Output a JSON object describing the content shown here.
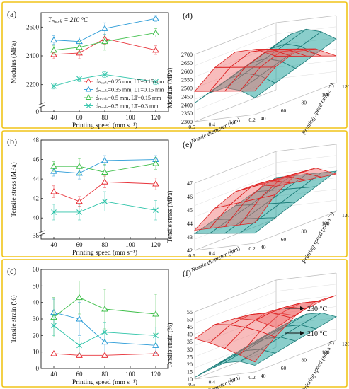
{
  "figure": {
    "panel_border_color": "#f0c419",
    "colors": {
      "red": "#e8343b",
      "blue": "#2a9bd7",
      "green": "#3fbf4a",
      "teal": "#2cc3a8",
      "surf_red": "#f06a6a",
      "surf_teal": "#2aa6a0"
    }
  },
  "chart_data": [
    {
      "panel": "(a)",
      "type": "line",
      "ylabel": "Modulus (MPa)",
      "xlabel": "Printing speed (mm s⁻¹)",
      "annotation": "Tₙₒₓₓₗₑ = 210 °C",
      "x": [
        40,
        60,
        80,
        120
      ],
      "x_ticks": [
        "40",
        "60",
        "80",
        "100",
        "120"
      ],
      "y_ticks": [
        "0",
        "2200",
        "2400",
        "2600"
      ],
      "axis_break": true,
      "legend": [
        "dₙₒₓₓₗₑ=0.25 mm, LT=0.15 mm",
        "dₙₒₓₓₗₑ=0.35 mm, LT=0.15 mm",
        "dₙₒₓₓₗₑ=0.5 mm, LT=0.15 mm",
        "dₙₒₓₓₗₑ=0.5 mm, LT=0.3 mm"
      ],
      "series": [
        {
          "values": [
            2410,
            2420,
            2520,
            2440
          ],
          "errors": [
            30,
            40,
            40,
            30
          ],
          "color": "red",
          "marker": "triangle"
        },
        {
          "values": [
            2510,
            2500,
            2590,
            2660
          ],
          "errors": [
            30,
            30,
            40,
            20
          ],
          "color": "blue",
          "marker": "triangle"
        },
        {
          "values": [
            2440,
            2460,
            2500,
            2560
          ],
          "errors": [
            30,
            40,
            60,
            30
          ],
          "color": "green",
          "marker": "triangle"
        },
        {
          "values": [
            2190,
            2240,
            2270,
            2220
          ],
          "errors": [
            20,
            20,
            20,
            20
          ],
          "color": "teal",
          "marker": "cross"
        }
      ]
    },
    {
      "panel": "(b)",
      "type": "line",
      "ylabel": "Tensile stress (MPa)",
      "xlabel": "Printing speed (mm s⁻¹)",
      "x": [
        40,
        60,
        80,
        120
      ],
      "x_ticks": [
        "40",
        "60",
        "80",
        "100",
        "120"
      ],
      "y_ticks": [
        "38",
        "40",
        "42",
        "44",
        "46",
        "48"
      ],
      "axis_break": true,
      "series": [
        {
          "values": [
            42.7,
            41.7,
            43.7,
            43.5
          ],
          "errors": [
            0.6,
            0.5,
            0.6,
            0.6
          ],
          "color": "red",
          "marker": "triangle"
        },
        {
          "values": [
            44.8,
            44.6,
            45.9,
            46.0
          ],
          "errors": [
            0.5,
            0.6,
            0.5,
            0.4
          ],
          "color": "blue",
          "marker": "triangle"
        },
        {
          "values": [
            45.3,
            45.3,
            44.7,
            45.6
          ],
          "errors": [
            0.5,
            0.8,
            0.8,
            0.6
          ],
          "color": "green",
          "marker": "triangle"
        },
        {
          "values": [
            40.6,
            40.6,
            41.7,
            40.8
          ],
          "errors": [
            0.8,
            0.8,
            1.0,
            1.0
          ],
          "color": "teal",
          "marker": "cross"
        }
      ]
    },
    {
      "panel": "(c)",
      "type": "line",
      "ylabel": "Tensile strain (%)",
      "xlabel": "Printing speed (mm s⁻¹)",
      "x": [
        40,
        60,
        80,
        120
      ],
      "x_ticks": [
        "40",
        "60",
        "80",
        "100",
        "120"
      ],
      "y_ticks": [
        "0",
        "10",
        "20",
        "30",
        "40",
        "50",
        "60"
      ],
      "ylim": [
        0,
        60
      ],
      "series": [
        {
          "values": [
            9,
            8,
            8,
            9
          ],
          "errors": [
            1,
            1,
            1,
            1
          ],
          "color": "red",
          "marker": "triangle"
        },
        {
          "values": [
            34,
            30,
            16,
            14
          ],
          "errors": [
            8,
            10,
            6,
            5
          ],
          "color": "blue",
          "marker": "triangle"
        },
        {
          "values": [
            31,
            43,
            36,
            33
          ],
          "errors": [
            12,
            10,
            12,
            12
          ],
          "color": "green",
          "marker": "triangle"
        },
        {
          "values": [
            26,
            14,
            22,
            20
          ],
          "errors": [
            6,
            5,
            6,
            5
          ],
          "color": "teal",
          "marker": "cross"
        }
      ]
    },
    {
      "panel": "(d)",
      "type": "surface3d",
      "zlabel": "Modulus (MPa)",
      "xlabel": "Nozzle diameter (mm)",
      "ylabel": "Printing speed (mm s⁻¹)",
      "z_ticks": [
        "2300",
        "2350",
        "2400",
        "2450",
        "2500",
        "2550",
        "2600",
        "2650",
        "2700"
      ],
      "x_ticks": [
        "0.2",
        "0.3",
        "0.4",
        "0.5"
      ],
      "y_ticks": [
        "40",
        "60",
        "80",
        "100",
        "120"
      ]
    },
    {
      "panel": "(e)",
      "type": "surface3d",
      "zlabel": "Tensile stress (MPa)",
      "xlabel": "Nozzle diameter (mm)",
      "ylabel": "Printing speed (mm s⁻¹)",
      "z_ticks": [
        "42",
        "43",
        "44",
        "45",
        "46",
        "47"
      ],
      "x_ticks": [
        "0.2",
        "0.3",
        "0.4",
        "0.5"
      ],
      "y_ticks": [
        "40",
        "60",
        "80",
        "100",
        "120"
      ]
    },
    {
      "panel": "(f)",
      "type": "surface3d",
      "zlabel": "Tensile strain (%)",
      "xlabel": "Nozzle diameter (mm)",
      "ylabel": "Printing speed (mm s⁻¹)",
      "z_ticks": [
        "10",
        "15",
        "20",
        "25",
        "30",
        "35",
        "40",
        "45",
        "50",
        "55"
      ],
      "x_ticks": [
        "0.2",
        "0.3",
        "0.4",
        "0.5"
      ],
      "y_ticks": [
        "40",
        "60",
        "80",
        "100",
        "120"
      ],
      "annotations": [
        "230 °C",
        "210 °C"
      ]
    }
  ]
}
